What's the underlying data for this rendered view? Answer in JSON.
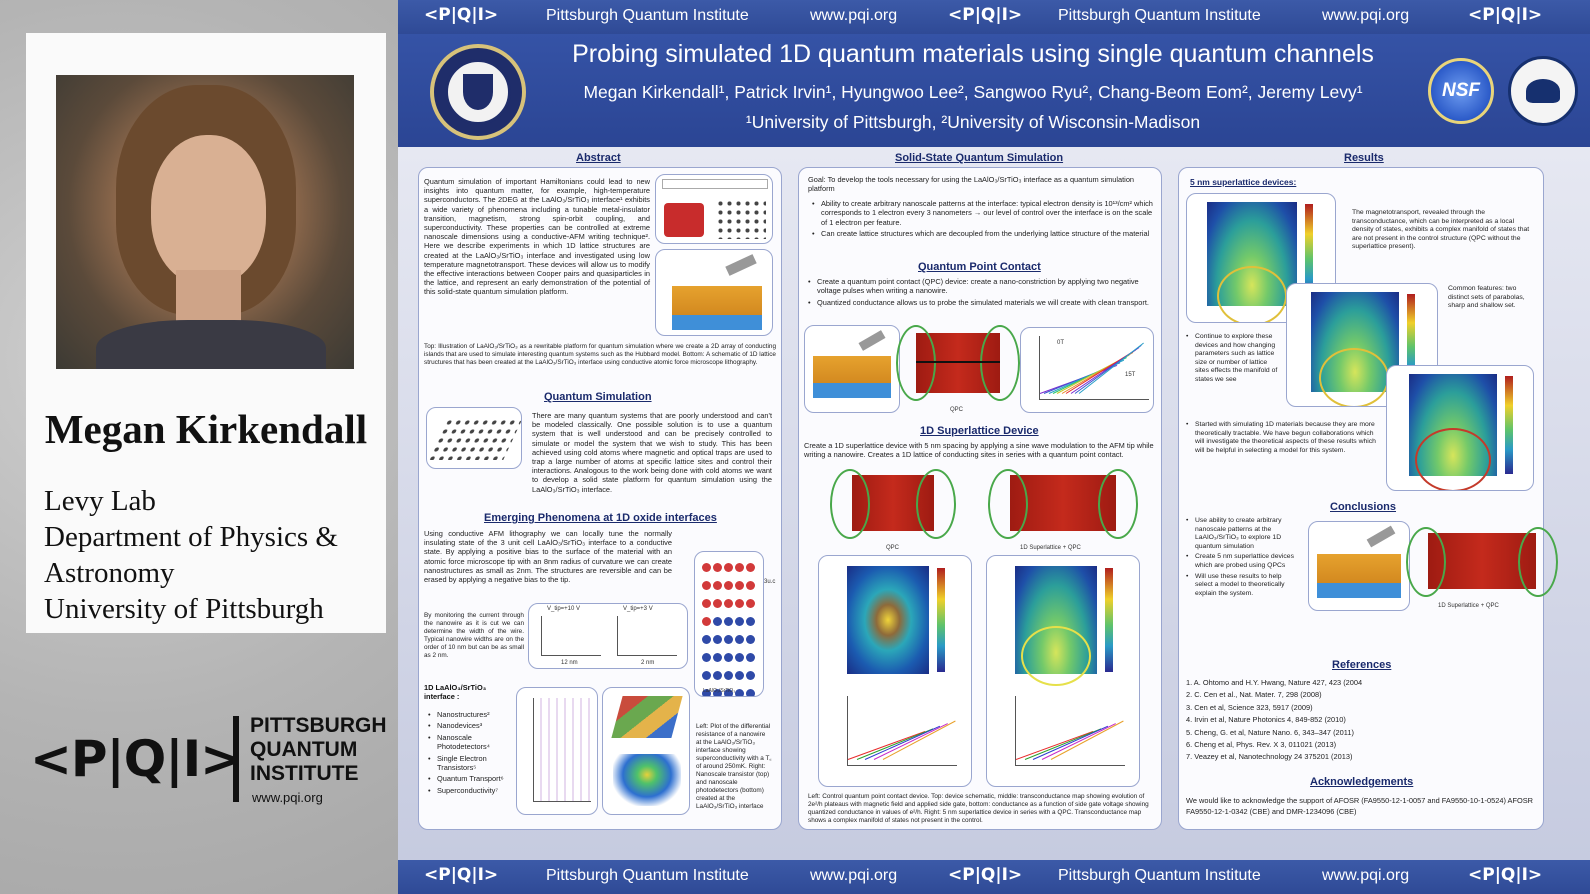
{
  "speaker": {
    "name": "Megan Kirkendall",
    "affiliation_lines": [
      "Levy Lab",
      "Department of Physics &",
      "Astronomy",
      "University of Pittsburgh"
    ]
  },
  "pqi_logo": {
    "mark": "<P|Q|I>",
    "line1": "PITTSBURGH",
    "line2": "QUANTUM",
    "line3": "INSTITUTE",
    "url": "www.pqi.org"
  },
  "banner": {
    "mark": "<P|Q|I>",
    "name": "Pittsburgh Quantum Institute",
    "url": "www.pqi.org"
  },
  "poster": {
    "title": "Probing simulated 1D quantum materials using single quantum channels",
    "authors": "Megan Kirkendall¹, Patrick Irvin¹, Hyungwoo Lee², Sangwoo Ryu², Chang-Beom Eom², Jeremy Levy¹",
    "affiliations": "¹University of Pittsburgh, ²University of Wisconsin-Madison",
    "logos": {
      "left": "pitt-seal",
      "nsf": "NSF",
      "right": "air-force-seal"
    },
    "abstract": {
      "heading": "Abstract",
      "text": "Quantum simulation of important Hamiltonians could lead to new insights into quantum matter, for example, high-temperature superconductors. The 2DEG at the LaAlO₃/SrTiO₃ interface¹ exhibits a wide variety of phenomena including a tunable metal-insulator transition, magnetism, strong spin-orbit coupling, and superconductivity. These properties can be controlled at extreme nanoscale dimensions using a conductive-AFM writing technique². Here we describe experiments in which 1D lattice structures are created at the LaAlO₃/SrTiO₃ interface and investigated using low temperature magnetotransport. These devices will allow us to modify the effective interactions between Cooper pairs and quasiparticles in the lattice, and represent an early demonstration of the potential of this solid-state quantum simulation platform.",
      "caption": "Top: Illustration of LaAlO₃/SrTiO₃ as a rewritable platform for quantum simulation where we create a 2D array of conducting islands that are used to simulate interesting quantum systems such as the Hubbard model. Bottom: A schematic of 1D lattice structures that has been created at the LaAlO₃/SrTiO₃ interface using conductive atomic force microscope lithography."
    },
    "quantum_simulation": {
      "heading": "Quantum Simulation",
      "text": "There are many quantum systems that are poorly understood and can't be modeled classically. One possible solution is to use a quantum system that is well understood and can be precisely controlled to simulate or model the system that we wish to study. This has been achieved using cold atoms where magnetic and optical traps are used to trap a large number of atoms at specific lattice sites and control their interactions. Analogous to the work being done with cold atoms we want to develop a solid state platform for quantum simulation using the LaAlO₃/SrTiO₃ interface."
    },
    "emerging": {
      "heading": "Emerging Phenomena at 1D oxide interfaces",
      "text": "Using conductive AFM lithography we can locally tune the normally insulating state of the 3 unit cell LaAlO₃/SrTiO₃ interface to a conductive state. By applying a positive bias to the surface of the material with an atomic force microscope tip with an 8nm radius of curvature we can create nanostructures as small as 2nm. The structures are reversible and can be erased by applying a negative bias to the tip.",
      "monitor_text": "By monitoring the current through the nanowire as it is cut we can determine the width of the wire. Typical nanowire widths are on the order of 10 nm but can be as small as 2 nm.",
      "plot_labels": [
        "V_tip=+10 V",
        "V_tip=+3 V",
        "12 nm",
        "2 nm"
      ],
      "crystal_label": "LaAlO₃/SrTiO₃",
      "crystal_side": "3u.c",
      "list_heading": "1D LaAlO₃/SrTiO₃ interface :",
      "list": [
        "Nanostructures²",
        "Nanodevices³",
        "Nanoscale Photodetectors⁴",
        "Single Electron Transistors⁵",
        "Quantum Transport⁶",
        "Superconductivity⁷"
      ],
      "fig_caption": "Left: Plot of the differential resistance of a nanowire at the LaAlO₃/SrTiO₃ interface showing superconductivity with a T꜀ of around 250mK. Right: Nanoscale transistor (top) and nanoscale photodetectors (bottom) created at the LaAlO₃/SrTiO₃ interface"
    },
    "solid_state": {
      "heading": "Solid-State Quantum Simulation",
      "goal": "Goal: To develop the tools necessary for using the LaAlO₃/SrTiO₃ interface as a quantum simulation platform",
      "bullets": [
        "Ability to create arbitrary nanoscale patterns at the interface: typical electron density is 10¹³/cm² which corresponds to 1 electron every 3 nanometers → our level of control over the interface is on the scale of 1 electron per feature.",
        "Can create lattice structures which are decoupled from the underlying lattice structure of the material"
      ]
    },
    "qpc": {
      "heading": "Quantum Point Contact",
      "bullets": [
        "Create a quantum point contact (QPC) device: create a nano-constriction by applying two negative voltage pulses when writing a nanowire.",
        "Quantized conductance allows us to probe the simulated materials we will create with clean transport."
      ],
      "plot_labels": [
        "0T",
        "15T",
        "QPC"
      ]
    },
    "superlattice": {
      "heading": "1D Superlattice Device",
      "text": "Create a 1D superlattice device with 5 nm spacing by applying a sine wave modulation to the AFM tip while writing a nanowire. Creates a 1D lattice of conducting sites in series with a quantum point contact.",
      "fig_labels": [
        "QPC",
        "1D Superlattice + QPC"
      ],
      "caption": "Left: Control quantum point contact device. Top: device schematic, middle: transconductance map showing evolution of 2e²/h plateaus with magnetic field and applied side gate, bottom: conductance as a function of side gate voltage showing quantized conductance in values of e²/h. Right: 5 nm superlattice device in series with a QPC. Transconductance map shows a complex manifold of states not present in the control."
    },
    "results": {
      "heading": "Results",
      "subheading": "5 nm superlattice devices:",
      "text1": "The magnetotransport, revealed through the transconductance, which can be interpreted as a local density of states, exhibits a complex manifold of states that are not present in the control structure (QPC without the superlattice present).",
      "text2": "Common features: two distinct sets of parabolas, sharp and shallow set.",
      "bullets": [
        "Continue to explore these devices and how changing parameters such as lattice size or number of lattice sites effects the manifold of states we see",
        "Started with simulating 1D materials because they are more theoretically tractable. We have begun collaborations which will investigate the theoretical aspects of these results which will be helpful in selecting a model for this system."
      ]
    },
    "conclusions": {
      "heading": "Conclusions",
      "bullets": [
        "Use ability to create arbitrary nanoscale patterns at the LaAlO₃/SrTiO₃ to explore 1D quantum simulation",
        "Create 5 nm superlattice devices which are probed using QPCs",
        "Will use these results to help select a model to theoretically explain the system."
      ],
      "fig_label": "1D Superlattice + QPC"
    },
    "references": {
      "heading": "References",
      "items": [
        "1.  A. Ohtomo and H.Y. Hwang, Nature 427, 423 (2004",
        "2.  C. Cen et al., Nat. Mater. 7, 298 (2008)",
        "3.  Cen et al, Science 323, 5917 (2009)",
        "4.  Irvin et al, Nature Photonics 4, 849-852 (2010)",
        "5.  Cheng, G. et al, Nature Nano. 6, 343–347 (2011)",
        "6.  Cheng et al, Phys. Rev. X 3, 011021 (2013)",
        "7.  Veazey et al, Nanotechnology 24 375201 (2013)"
      ]
    },
    "acknowledgements": {
      "heading": "Acknowledgements",
      "text": "We would like to acknowledge the support of AFOSR (FA9550-12-1-0057 and FA9550-10-1-0524) AFOSR FA9550-12-1-0342 (CBE) and DMR-1234096 (CBE)"
    }
  },
  "colors": {
    "poster_blue": "#2f4a96",
    "heading_navy": "#1a2a6c",
    "device_gold": "#e6a22e",
    "substrate_blue": "#3f8fd8",
    "map_red": "#c42a1c"
  }
}
